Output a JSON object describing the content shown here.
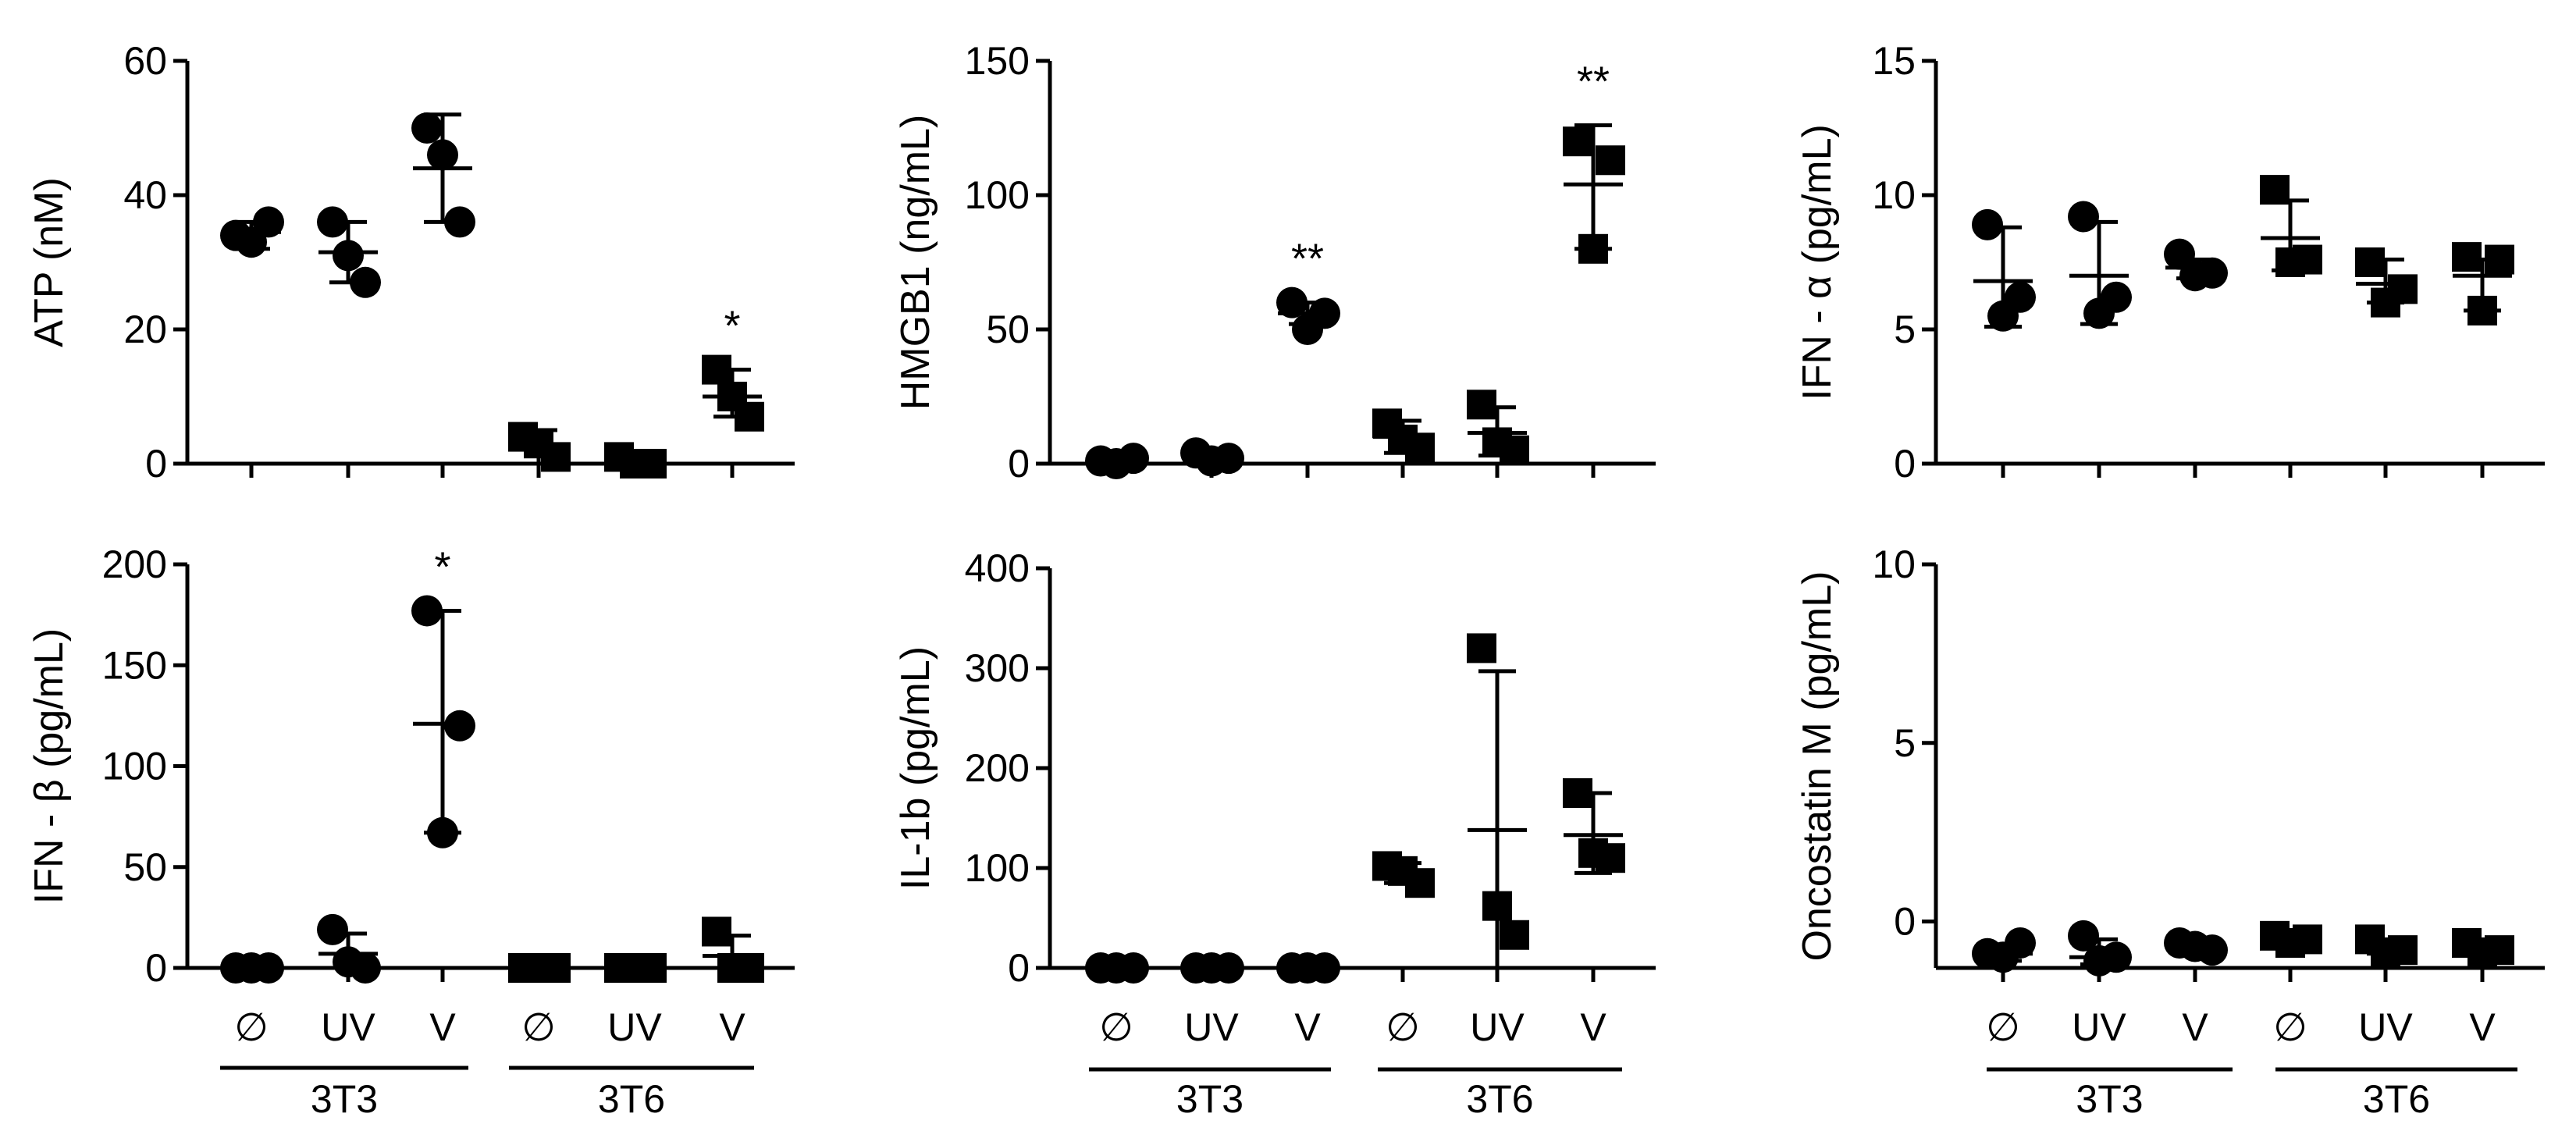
{
  "chart_data": [
    {
      "type": "scatter",
      "ylabel": "ATP (nM)",
      "ylim": [
        0,
        60
      ],
      "yticks": [
        0,
        20,
        40,
        60
      ],
      "categories": [
        "∅",
        "UV",
        "V",
        "∅",
        "UV",
        "V"
      ],
      "groups": [
        {
          "name": "3T3",
          "span": [
            0,
            2
          ]
        },
        {
          "name": "3T6",
          "span": [
            3,
            5
          ]
        }
      ],
      "points": [
        [
          34,
          36,
          33
        ],
        [
          36,
          27,
          31
        ],
        [
          50,
          36,
          46
        ],
        [
          4,
          1,
          3
        ],
        [
          1,
          0,
          0
        ],
        [
          14,
          7,
          10
        ]
      ],
      "means": [
        34.5,
        31.5,
        44,
        2.7,
        0.5,
        10
      ],
      "errors": [
        [
          32,
          36
        ],
        [
          27,
          36
        ],
        [
          36,
          52
        ],
        [
          0,
          5
        ],
        [
          0,
          1
        ],
        [
          7,
          14
        ]
      ],
      "markers": [
        "circle",
        "circle",
        "circle",
        "square",
        "square",
        "square"
      ],
      "annotations": [
        "",
        "",
        "",
        "",
        "",
        "*"
      ]
    },
    {
      "type": "scatter",
      "ylabel": "HMGB1 (ng/mL)",
      "ylim": [
        0,
        150
      ],
      "yticks": [
        0,
        50,
        100,
        150
      ],
      "categories": [
        "∅",
        "UV",
        "V",
        "∅",
        "UV",
        "V"
      ],
      "groups": [
        {
          "name": "3T3",
          "span": [
            0,
            2
          ]
        },
        {
          "name": "3T6",
          "span": [
            3,
            5
          ]
        }
      ],
      "points": [
        [
          1,
          2,
          0
        ],
        [
          4,
          2,
          1
        ],
        [
          60,
          56,
          50
        ],
        [
          15,
          6,
          9
        ],
        [
          22,
          5,
          8
        ],
        [
          120,
          113,
          80
        ]
      ],
      "means": [
        1,
        2.5,
        56,
        10,
        11.5,
        104
      ],
      "errors": [
        [
          0,
          2
        ],
        [
          0,
          5
        ],
        [
          52,
          60
        ],
        [
          4,
          16
        ],
        [
          3,
          21
        ],
        [
          80,
          126
        ]
      ],
      "markers": [
        "circle",
        "circle",
        "circle",
        "square",
        "square",
        "square"
      ],
      "annotations": [
        "",
        "",
        "**",
        "",
        "",
        "**"
      ]
    },
    {
      "type": "scatter",
      "ylabel": "IFN - α (pg/mL)",
      "ylim": [
        0,
        15
      ],
      "yticks": [
        0,
        5,
        10,
        15
      ],
      "categories": [
        "∅",
        "UV",
        "V",
        "∅",
        "UV",
        "V"
      ],
      "groups": [
        {
          "name": "3T3",
          "span": [
            0,
            2
          ]
        },
        {
          "name": "3T6",
          "span": [
            3,
            5
          ]
        }
      ],
      "points": [
        [
          8.9,
          6.2,
          5.5
        ],
        [
          9.2,
          6.2,
          5.6
        ],
        [
          7.8,
          7.1,
          7.0
        ],
        [
          10.2,
          7.6,
          7.5
        ],
        [
          7.5,
          6.5,
          6.0
        ],
        [
          7.7,
          7.6,
          5.7
        ]
      ],
      "means": [
        6.8,
        7.0,
        7.3,
        8.4,
        6.7,
        7.0
      ],
      "errors": [
        [
          5.1,
          8.8
        ],
        [
          5.2,
          9.0
        ],
        [
          6.9,
          7.6
        ],
        [
          7.2,
          9.8
        ],
        [
          6.0,
          7.6
        ],
        [
          5.7,
          7.6
        ]
      ],
      "markers": [
        "circle",
        "circle",
        "circle",
        "square",
        "square",
        "square"
      ],
      "annotations": [
        "",
        "",
        "",
        "",
        "",
        ""
      ]
    },
    {
      "type": "scatter",
      "ylabel": "IFN - β (pg/mL)",
      "ylim": [
        0,
        200
      ],
      "yticks": [
        0,
        50,
        100,
        150,
        200
      ],
      "categories": [
        "∅",
        "UV",
        "V",
        "∅",
        "UV",
        "V"
      ],
      "groups": [
        {
          "name": "3T3",
          "span": [
            0,
            2
          ]
        },
        {
          "name": "3T6",
          "span": [
            3,
            5
          ]
        }
      ],
      "points": [
        [
          0,
          0,
          0
        ],
        [
          19,
          0,
          3
        ],
        [
          177,
          120,
          67
        ],
        [
          0,
          0,
          0
        ],
        [
          0,
          0,
          0
        ],
        [
          18,
          0,
          0
        ]
      ],
      "means": [
        0,
        7,
        121,
        0,
        0,
        6
      ],
      "errors": [
        [
          0,
          0
        ],
        [
          0,
          17
        ],
        [
          67,
          177
        ],
        [
          0,
          0
        ],
        [
          0,
          0
        ],
        [
          0,
          16
        ]
      ],
      "markers": [
        "circle",
        "circle",
        "circle",
        "square",
        "square",
        "square"
      ],
      "annotations": [
        "",
        "",
        "*",
        "",
        "",
        ""
      ]
    },
    {
      "type": "scatter",
      "ylabel": "IL-1b (pg/mL)",
      "ylim": [
        0,
        400
      ],
      "yticks": [
        0,
        100,
        200,
        300,
        400
      ],
      "categories": [
        "∅",
        "UV",
        "V",
        "∅",
        "UV",
        "V"
      ],
      "groups": [
        {
          "name": "3T3",
          "span": [
            0,
            2
          ]
        },
        {
          "name": "3T6",
          "span": [
            3,
            5
          ]
        }
      ],
      "points": [
        [
          0,
          0,
          0
        ],
        [
          0,
          0,
          0
        ],
        [
          0,
          0,
          0
        ],
        [
          102,
          85,
          97
        ],
        [
          320,
          33,
          62
        ],
        [
          175,
          110,
          115
        ]
      ],
      "means": [
        0,
        0,
        0,
        95,
        138,
        133
      ],
      "errors": [
        [
          0,
          0
        ],
        [
          0,
          0
        ],
        [
          0,
          0
        ],
        [
          85,
          105
        ],
        [
          0,
          297
        ],
        [
          95,
          175
        ]
      ],
      "markers": [
        "circle",
        "circle",
        "circle",
        "square",
        "square",
        "square"
      ],
      "annotations": [
        "",
        "",
        "",
        "",
        "",
        ""
      ]
    },
    {
      "type": "scatter",
      "ylabel": "Oncostatin M (pg/mL)",
      "ylim": [
        -1.3,
        10
      ],
      "yticks": [
        0,
        5,
        10
      ],
      "categories": [
        "∅",
        "UV",
        "V",
        "∅",
        "UV",
        "V"
      ],
      "groups": [
        {
          "name": "3T3",
          "span": [
            0,
            2
          ]
        },
        {
          "name": "3T6",
          "span": [
            3,
            5
          ]
        }
      ],
      "points": [
        [
          -0.9,
          -0.6,
          -1.0
        ],
        [
          -0.4,
          -1.0,
          -1.1
        ],
        [
          -0.6,
          -0.8,
          -0.7
        ],
        [
          -0.4,
          -0.5,
          -0.6
        ],
        [
          -0.5,
          -0.8,
          -0.9
        ],
        [
          -0.6,
          -0.8,
          -0.9
        ]
      ],
      "means": [
        -0.9,
        -1.0,
        -0.7,
        -0.5,
        -0.7,
        -0.7
      ],
      "errors": [
        [
          -1.1,
          -0.7
        ],
        [
          -1.2,
          -0.5
        ],
        [
          -0.8,
          -0.6
        ],
        [
          -0.7,
          -0.3
        ],
        [
          -0.9,
          -0.5
        ],
        [
          -0.9,
          -0.5
        ]
      ],
      "markers": [
        "circle",
        "circle",
        "circle",
        "square",
        "square",
        "square"
      ],
      "annotations": [
        "",
        "",
        "",
        "",
        "",
        ""
      ]
    }
  ]
}
